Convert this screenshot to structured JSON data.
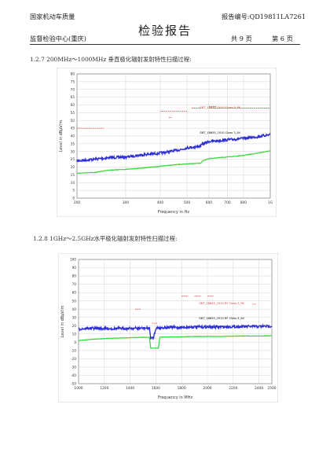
{
  "header": {
    "org_top": "国家机动车质量",
    "org_bottom": "监督检验中心(重庆)",
    "title": "检验报告",
    "report_no_label": "报告编号:",
    "report_no": "QD19811LA7261",
    "total_pages": "共 9 页",
    "page_no": "第 6 页"
  },
  "sections": [
    {
      "caption": "1.2.7 200MHz～1000MHz 垂直极化辐射发射特性扫描过程:"
    },
    {
      "caption": "1.2.8 1GHz～2.5GHz水平极化辐射发射特性扫描过程:"
    }
  ],
  "colors": {
    "trace_max": "#2f2fd6",
    "trace_avg": "#35d835",
    "limit_peak": "#d83a3a",
    "limit_avg": "#d24bd2",
    "grid": "#c8c8c8"
  },
  "chart_data": [
    {
      "type": "line",
      "scale": "log-x",
      "xlabel": "Frequency in Hz",
      "ylabel": "Level in dBµV/m",
      "xlim": [
        200,
        1000
      ],
      "ylim": [
        0,
        80
      ],
      "xticks": [
        "200",
        "300",
        "400",
        "500",
        "600",
        "700",
        "800",
        "1G"
      ],
      "xtick_values": [
        200,
        300,
        400,
        500,
        600,
        700,
        800,
        1000
      ],
      "yticks": [
        0,
        5,
        10,
        15,
        20,
        25,
        30,
        35,
        40,
        45,
        50,
        55,
        60,
        65,
        70,
        75,
        80
      ],
      "limit_labels": [
        "GBT_18655_2010 Class 3_PK",
        "GBT_18655_2010 Class 3_AV"
      ],
      "series": [
        {
          "style": "max",
          "x": [
            200,
            230,
            260,
            300,
            350,
            400,
            450,
            480,
            500,
            540,
            560,
            570,
            600,
            650,
            700,
            750,
            800,
            900,
            1000
          ],
          "y": [
            24,
            25,
            26,
            26.5,
            28,
            29,
            30.5,
            31.5,
            32.5,
            33,
            33.5,
            35,
            36.5,
            37,
            37.5,
            38,
            38.5,
            39.5,
            41
          ]
        },
        {
          "style": "avg",
          "x": [
            200,
            230,
            260,
            300,
            350,
            400,
            450,
            500,
            560,
            570,
            600,
            700,
            800,
            900,
            1000
          ],
          "y": [
            16,
            16.5,
            18,
            18.5,
            19.5,
            20.5,
            21.5,
            22,
            22.5,
            24,
            25.5,
            26.5,
            27.5,
            29,
            30.5
          ]
        },
        {
          "style": "limit_pk",
          "segments": [
            [
              200,
              250,
              45
            ],
            [
              400,
              500,
              56
            ],
            [
              430,
              440,
              52
            ],
            [
              520,
              560,
              58
            ],
            [
              600,
              1000,
              58
            ],
            [
              600,
              640,
              59
            ]
          ]
        },
        {
          "style": "limit_av",
          "segments": [
            [
              200,
              250,
              38
            ],
            [
              400,
              520,
              39
            ],
            [
              520,
              600,
              41
            ],
            [
              600,
              1000,
              41
            ]
          ]
        }
      ]
    },
    {
      "type": "line",
      "xlabel": "Frequency in MHz",
      "ylabel": "Level in dBµV/m",
      "xlim": [
        1000,
        2500
      ],
      "ylim": [
        -50,
        100
      ],
      "xticks": [
        "1000",
        "1200",
        "1400",
        "1600",
        "1800",
        "2000",
        "2200",
        "2400",
        "2500"
      ],
      "xtick_values": [
        1000,
        1200,
        1400,
        1600,
        1800,
        2000,
        2200,
        2400,
        2500
      ],
      "yticks": [
        -50,
        -40,
        -30,
        -20,
        -10,
        0,
        10,
        20,
        30,
        40,
        50,
        60,
        70,
        80,
        90,
        100
      ],
      "limit_labels": [
        "GBT_18655_2010 RF Class 3_PK",
        "GBT_18655_2010 RF Class 3_AV"
      ],
      "series": [
        {
          "style": "max",
          "x": [
            1000,
            1100,
            1200,
            1300,
            1400,
            1500,
            1550,
            1560,
            1580,
            1600,
            1620,
            1700,
            1800,
            1900,
            2000,
            2100,
            2200,
            2300,
            2400,
            2500
          ],
          "y": [
            16,
            17,
            16.5,
            16.5,
            16.8,
            17,
            17,
            5,
            5,
            17,
            17.5,
            18,
            18,
            18.5,
            18.5,
            18.5,
            18.8,
            19,
            19,
            19.5
          ]
        },
        {
          "style": "avg",
          "x": [
            1000,
            1100,
            1200,
            1300,
            1400,
            1500,
            1550,
            1560,
            1620,
            1630,
            1700,
            1800,
            1900,
            2000,
            2100,
            2200,
            2300,
            2400,
            2500
          ],
          "y": [
            2,
            3.5,
            4.5,
            5,
            5.5,
            6,
            6,
            -7,
            -7,
            6,
            6.5,
            6.5,
            7,
            7,
            7,
            7.5,
            7.5,
            7.5,
            8
          ]
        },
        {
          "style": "limit_pk",
          "segments": [
            [
              1440,
              1480,
              40
            ],
            [
              1570,
              1610,
              23
            ],
            [
              1800,
              1850,
              56
            ],
            [
              1900,
              1950,
              56
            ],
            [
              2000,
              2050,
              56
            ],
            [
              2350,
              2380,
              46
            ]
          ]
        },
        {
          "style": "limit_av",
          "segments": [
            [
              1440,
              1480,
              30
            ],
            [
              1570,
              1610,
              18
            ],
            [
              1800,
              1850,
              36
            ],
            [
              1900,
              1950,
              36
            ],
            [
              2000,
              2050,
              36
            ],
            [
              2350,
              2380,
              36
            ]
          ]
        }
      ]
    }
  ]
}
